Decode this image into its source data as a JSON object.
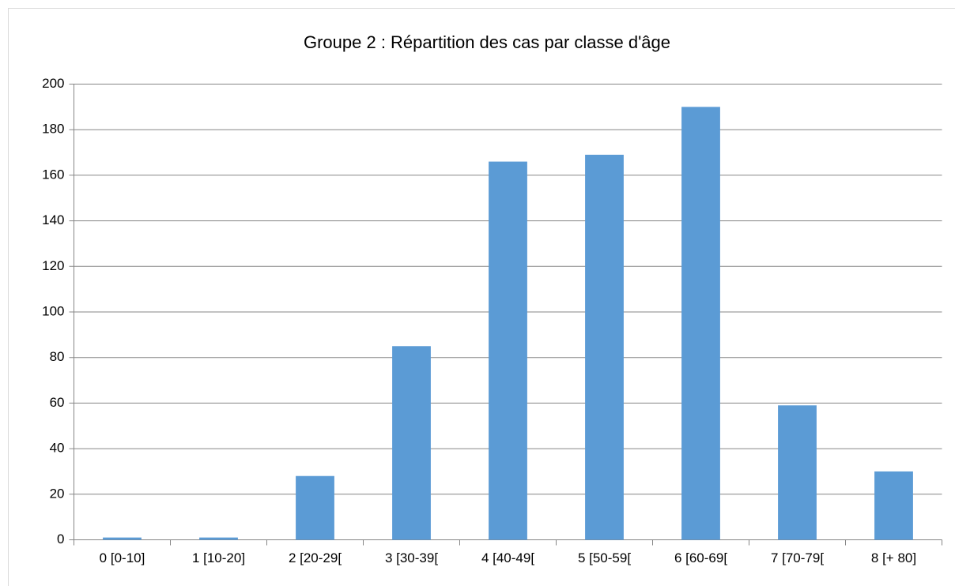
{
  "chart_data": {
    "type": "bar",
    "title": "Groupe 2 : Répartition des cas par classe d'âge",
    "categories": [
      "0 [0-10]",
      "1 [10-20]",
      "2 [20-29[",
      "3 [30-39[",
      "4 [40-49[",
      "5 [50-59[",
      "6 [60-69[",
      "7 [70-79[",
      "8 [+ 80]"
    ],
    "values": [
      1,
      1,
      28,
      85,
      166,
      169,
      190,
      59,
      30
    ],
    "color": "#5b9bd5",
    "ylim": [
      0,
      200
    ],
    "yticks": [
      0,
      20,
      40,
      60,
      80,
      100,
      120,
      140,
      160,
      180,
      200
    ],
    "grid": true
  }
}
